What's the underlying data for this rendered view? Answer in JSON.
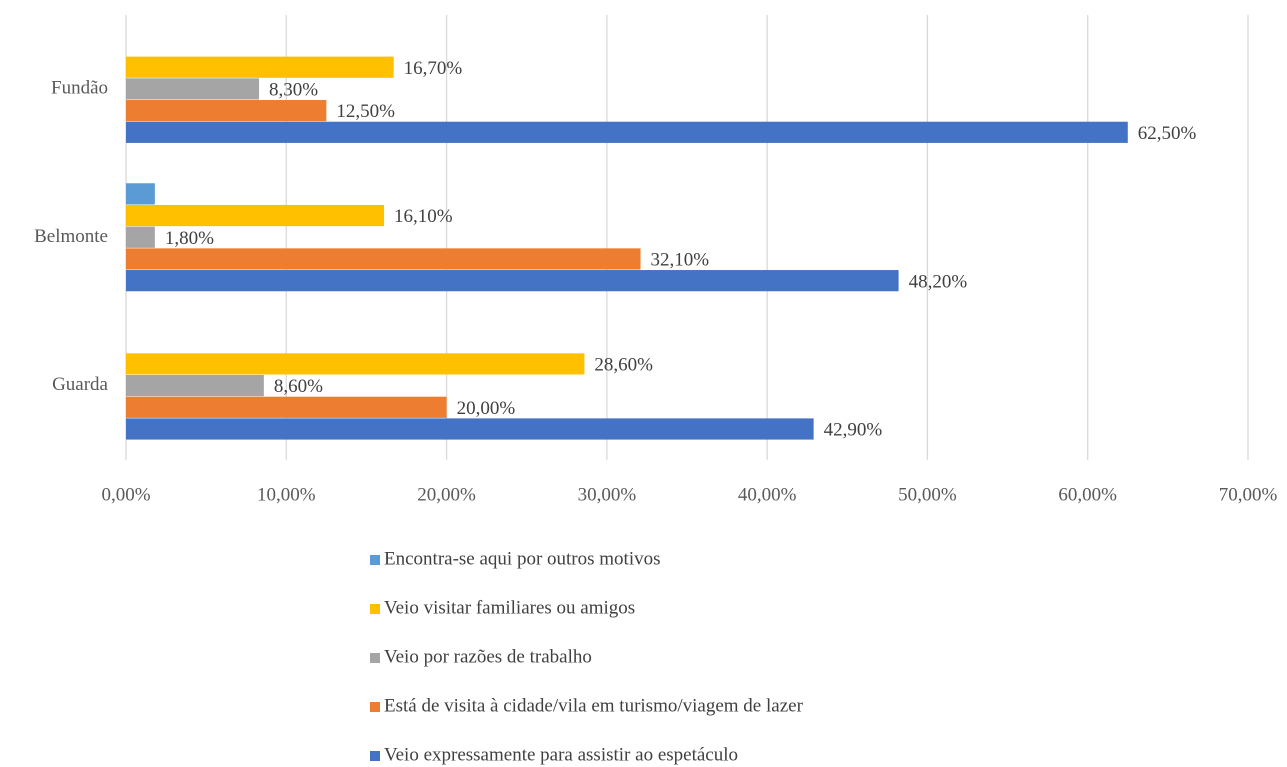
{
  "chart_data": {
    "type": "hbar",
    "categories": [
      "Fundão",
      "Belmonte",
      "Guarda"
    ],
    "series": [
      {
        "name": "Encontra-se aqui por outros motivos",
        "color": "#5b9bd5",
        "values": [
          null,
          1.8,
          null
        ],
        "value_labels": [
          null,
          null,
          null
        ]
      },
      {
        "name": "Veio visitar familiares ou amigos",
        "color": "#ffc000",
        "values": [
          16.7,
          16.1,
          28.6
        ],
        "value_labels": [
          "16,70%",
          "16,10%",
          "28,60%"
        ]
      },
      {
        "name": "Veio por razões de trabalho",
        "color": "#a5a5a5",
        "values": [
          8.3,
          1.8,
          8.6
        ],
        "value_labels": [
          "8,30%",
          "1,80%",
          "8,60%"
        ]
      },
      {
        "name": "Está de visita à cidade/vila em turismo/viagem de lazer",
        "color": "#ed7d31",
        "values": [
          12.5,
          32.1,
          20.0
        ],
        "value_labels": [
          "12,50%",
          "32,10%",
          "20,00%"
        ]
      },
      {
        "name": "Veio expressamente para assistir ao espetáculo",
        "color": "#4472c4",
        "values": [
          62.5,
          48.2,
          42.9
        ],
        "value_labels": [
          "62,50%",
          "48,20%",
          "42,90%"
        ]
      }
    ],
    "xlim": [
      0,
      70
    ],
    "xticks": [
      {
        "value": 0,
        "label": "0,00%"
      },
      {
        "value": 10,
        "label": "10,00%"
      },
      {
        "value": 20,
        "label": "20,00%"
      },
      {
        "value": 30,
        "label": "30,00%"
      },
      {
        "value": 40,
        "label": "40,00%"
      },
      {
        "value": 50,
        "label": "50,00%"
      },
      {
        "value": 60,
        "label": "60,00%"
      },
      {
        "value": 70,
        "label": "70,00%"
      }
    ],
    "grid": true
  }
}
